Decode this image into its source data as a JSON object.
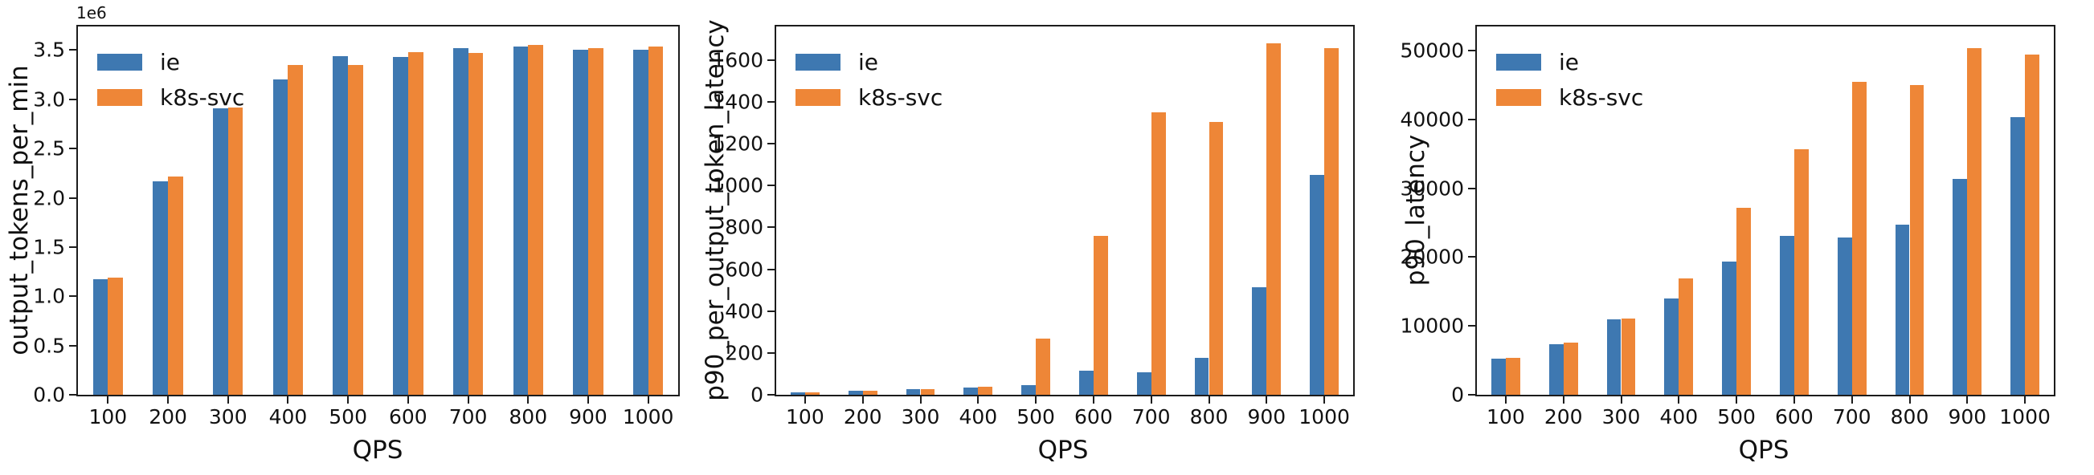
{
  "figure": {
    "xlabel": "QPS",
    "series_names": [
      "ie",
      "k8s-svc"
    ],
    "colors": {
      "ie": "#3e78b1",
      "k8s_svc": "#ee8637",
      "spine": "#1c1c1c",
      "text": "#111111"
    }
  },
  "chart_data": [
    {
      "type": "bar",
      "title": "",
      "ylabel": "output_tokens_per_min",
      "xlabel": "QPS",
      "offset_label": "1e6",
      "grid": false,
      "legend_location": "upper left",
      "categories": [
        "100",
        "200",
        "300",
        "400",
        "500",
        "600",
        "700",
        "800",
        "900",
        "1000"
      ],
      "series": [
        {
          "name": "ie",
          "color": "#3e78b1",
          "values": [
            1170000,
            2170000,
            2910000,
            3200000,
            3440000,
            3430000,
            3520000,
            3540000,
            3500000,
            3500000
          ]
        },
        {
          "name": "k8s-svc",
          "color": "#ee8637",
          "values": [
            1190000,
            2220000,
            2920000,
            3350000,
            3350000,
            3480000,
            3470000,
            3550000,
            3520000,
            3540000
          ]
        }
      ],
      "ylim": [
        0,
        3740000
      ],
      "yticks": [
        {
          "value": 0,
          "label": "0.0"
        },
        {
          "value": 500000,
          "label": "0.5"
        },
        {
          "value": 1000000,
          "label": "1.0"
        },
        {
          "value": 1500000,
          "label": "1.5"
        },
        {
          "value": 2000000,
          "label": "2.0"
        },
        {
          "value": 2500000,
          "label": "2.5"
        },
        {
          "value": 3000000,
          "label": "3.0"
        },
        {
          "value": 3500000,
          "label": "3.5"
        }
      ]
    },
    {
      "type": "bar",
      "title": "",
      "ylabel": "p90_per_output_token_latency",
      "xlabel": "QPS",
      "offset_label": "",
      "grid": false,
      "legend_location": "upper left",
      "categories": [
        "100",
        "200",
        "300",
        "400",
        "500",
        "600",
        "700",
        "800",
        "900",
        "1000"
      ],
      "series": [
        {
          "name": "ie",
          "color": "#3e78b1",
          "values": [
            10,
            18,
            25,
            33,
            45,
            115,
            108,
            178,
            515,
            1050
          ]
        },
        {
          "name": "k8s-svc",
          "color": "#ee8637",
          "values": [
            10,
            18,
            25,
            37,
            268,
            760,
            1350,
            1305,
            1680,
            1655
          ]
        }
      ],
      "ylim": [
        0,
        1760
      ],
      "yticks": [
        {
          "value": 0,
          "label": "0"
        },
        {
          "value": 200,
          "label": "200"
        },
        {
          "value": 400,
          "label": "400"
        },
        {
          "value": 600,
          "label": "600"
        },
        {
          "value": 800,
          "label": "800"
        },
        {
          "value": 1000,
          "label": "1000"
        },
        {
          "value": 1200,
          "label": "1200"
        },
        {
          "value": 1400,
          "label": "1400"
        },
        {
          "value": 1600,
          "label": "1600"
        }
      ]
    },
    {
      "type": "bar",
      "title": "",
      "ylabel": "p90_latency",
      "xlabel": "QPS",
      "offset_label": "",
      "grid": false,
      "legend_location": "upper left",
      "categories": [
        "100",
        "200",
        "300",
        "400",
        "500",
        "600",
        "700",
        "800",
        "900",
        "1000"
      ],
      "series": [
        {
          "name": "ie",
          "color": "#3e78b1",
          "values": [
            5200,
            7300,
            10900,
            14000,
            19300,
            23100,
            22800,
            24700,
            31400,
            40300
          ]
        },
        {
          "name": "k8s-svc",
          "color": "#ee8637",
          "values": [
            5400,
            7600,
            11100,
            16900,
            27200,
            35700,
            45400,
            45000,
            50400,
            49400
          ]
        }
      ],
      "ylim": [
        0,
        53500
      ],
      "yticks": [
        {
          "value": 0,
          "label": "0"
        },
        {
          "value": 10000,
          "label": "10000"
        },
        {
          "value": 20000,
          "label": "20000"
        },
        {
          "value": 30000,
          "label": "30000"
        },
        {
          "value": 40000,
          "label": "40000"
        },
        {
          "value": 50000,
          "label": "50000"
        }
      ]
    }
  ]
}
